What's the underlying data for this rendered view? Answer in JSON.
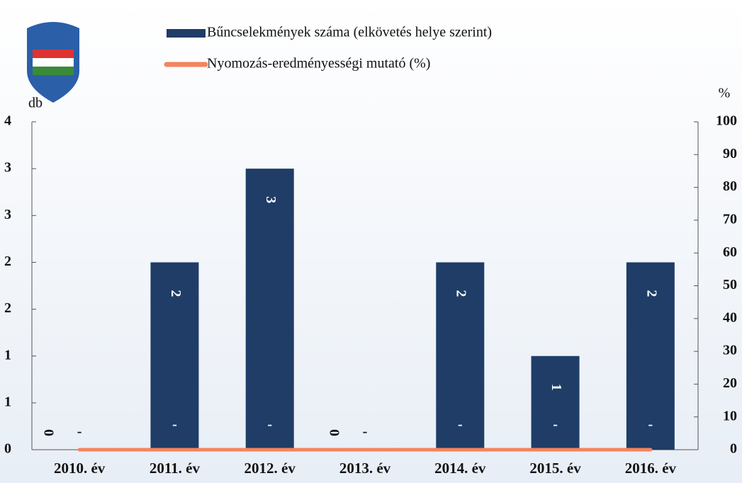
{
  "chart_data": {
    "type": "bar",
    "y_label": "db",
    "y2_label": "%",
    "categories": [
      "2010. év",
      "2011. év",
      "2012. év",
      "2013. év",
      "2014. év",
      "2015. év",
      "2016. év"
    ],
    "series": [
      {
        "name": "Bűncselekmények száma (elkövetés helye szerint)",
        "type": "bar",
        "color": "#1f3d66",
        "values": [
          0,
          2,
          3,
          0,
          2,
          1,
          2
        ]
      },
      {
        "name": "Nyomozás-eredményességi mutató (%)",
        "type": "line",
        "axis": "y2",
        "color": "#f4845f",
        "values": [
          0,
          0,
          0,
          0,
          0,
          0,
          0
        ],
        "value_labels": [
          "-",
          "-",
          "-",
          "-",
          "-",
          "-",
          "-"
        ]
      }
    ],
    "ylim": [
      0,
      3.5
    ],
    "yticks": [
      0,
      {
        "value": 0.5,
        "label": "1"
      },
      1,
      {
        "value": 1.5,
        "label": "2"
      },
      2,
      {
        "value": 2.5,
        "label": "3"
      },
      3,
      {
        "value": 3.5,
        "label": "4"
      }
    ],
    "y2lim": [
      0,
      100
    ],
    "y2ticks": [
      0,
      10,
      20,
      30,
      40,
      50,
      60,
      70,
      80,
      90,
      100
    ]
  }
}
